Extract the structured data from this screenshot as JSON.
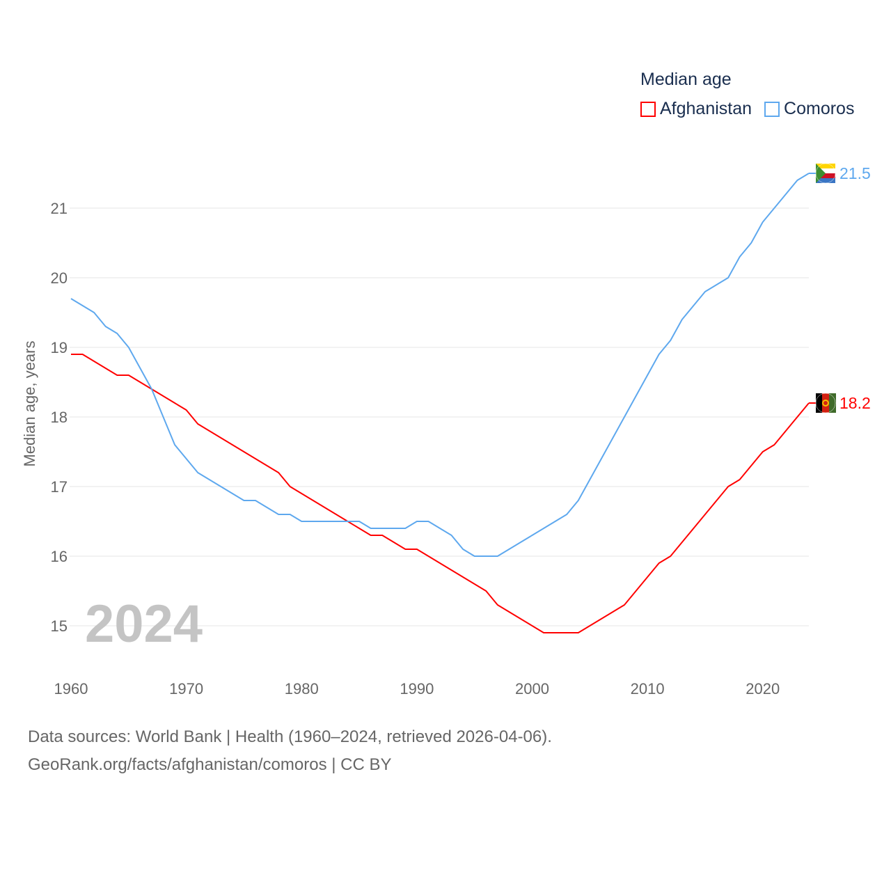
{
  "chart_data": {
    "type": "line",
    "title": "Median age",
    "xlabel": "",
    "ylabel": "Median age, years",
    "xlim": [
      1960,
      2024
    ],
    "ylim": [
      14.4,
      21.9
    ],
    "x_ticks": [
      1960,
      1970,
      1980,
      1990,
      2000,
      2010,
      2020
    ],
    "y_ticks": [
      15,
      16,
      17,
      18,
      19,
      20,
      21
    ],
    "grid": true,
    "legend_placement": "top-right",
    "year_label": "2024",
    "x": [
      1960,
      1961,
      1962,
      1963,
      1964,
      1965,
      1966,
      1967,
      1968,
      1969,
      1970,
      1971,
      1972,
      1973,
      1974,
      1975,
      1976,
      1977,
      1978,
      1979,
      1980,
      1981,
      1982,
      1983,
      1984,
      1985,
      1986,
      1987,
      1988,
      1989,
      1990,
      1991,
      1992,
      1993,
      1994,
      1995,
      1996,
      1997,
      1998,
      1999,
      2000,
      2001,
      2002,
      2003,
      2004,
      2005,
      2006,
      2007,
      2008,
      2009,
      2010,
      2011,
      2012,
      2013,
      2014,
      2015,
      2016,
      2017,
      2018,
      2019,
      2020,
      2021,
      2022,
      2023,
      2024
    ],
    "series": [
      {
        "name": "Afghanistan",
        "color": "#ff0000",
        "end_label": "18.2",
        "values": [
          18.9,
          18.9,
          18.8,
          18.7,
          18.6,
          18.6,
          18.5,
          18.4,
          18.3,
          18.2,
          18.1,
          17.9,
          17.8,
          17.7,
          17.6,
          17.5,
          17.4,
          17.3,
          17.2,
          17.0,
          16.9,
          16.8,
          16.7,
          16.6,
          16.5,
          16.4,
          16.3,
          16.3,
          16.2,
          16.1,
          16.1,
          16.0,
          15.9,
          15.8,
          15.7,
          15.6,
          15.5,
          15.3,
          15.2,
          15.1,
          15.0,
          14.9,
          14.9,
          14.9,
          14.9,
          15.0,
          15.1,
          15.2,
          15.3,
          15.5,
          15.7,
          15.9,
          16.0,
          16.2,
          16.4,
          16.6,
          16.8,
          17.0,
          17.1,
          17.3,
          17.5,
          17.6,
          17.8,
          18.0,
          18.2
        ]
      },
      {
        "name": "Comoros",
        "color": "#5ea8ee",
        "end_label": "21.5",
        "values": [
          19.7,
          19.6,
          19.5,
          19.3,
          19.2,
          19.0,
          18.7,
          18.4,
          18.0,
          17.6,
          17.4,
          17.2,
          17.1,
          17.0,
          16.9,
          16.8,
          16.8,
          16.7,
          16.6,
          16.6,
          16.5,
          16.5,
          16.5,
          16.5,
          16.5,
          16.5,
          16.4,
          16.4,
          16.4,
          16.4,
          16.5,
          16.5,
          16.4,
          16.3,
          16.1,
          16.0,
          16.0,
          16.0,
          16.1,
          16.2,
          16.3,
          16.4,
          16.5,
          16.6,
          16.8,
          17.1,
          17.4,
          17.7,
          18.0,
          18.3,
          18.6,
          18.9,
          19.1,
          19.4,
          19.6,
          19.8,
          19.9,
          20.0,
          20.3,
          20.5,
          20.8,
          21.0,
          21.2,
          21.4,
          21.5
        ]
      }
    ]
  },
  "footer": {
    "line1": "Data sources: World Bank | Health (1960–2024, retrieved 2026-04-06).",
    "line2": "GeoRank.org/facts/afghanistan/comoros | CC BY"
  }
}
